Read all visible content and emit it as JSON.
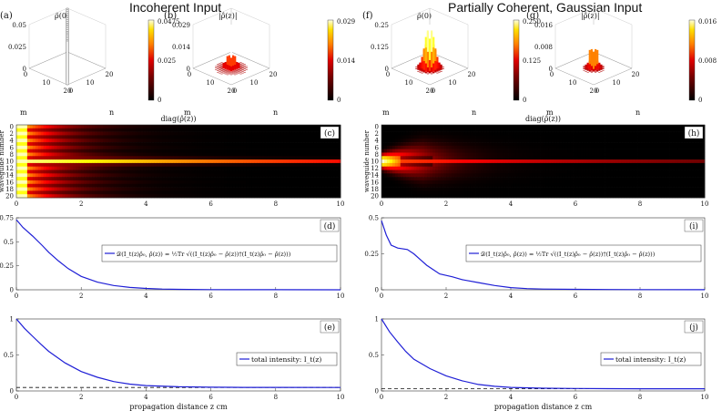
{
  "titles": {
    "left": "Incoherent Input",
    "right": "Partially Coherent, Gaussian Input"
  },
  "chart_data": [
    {
      "type": "bar3d",
      "id": "a",
      "panel_label": "(a)",
      "title": "ρ̂(0)",
      "xlabel": "n",
      "ylabel": "m",
      "zticks": [
        "0.05",
        "0.025",
        "0"
      ],
      "mticks": [
        "0",
        "10",
        "20"
      ],
      "nticks": [
        "0",
        "10",
        "20"
      ],
      "colorbar": {
        "min": 0,
        "max": 0.0475,
        "ticks": [
          "0.0475",
          "0.025",
          "0"
        ]
      },
      "description_values": {
        "diagonal_value": 0.0476,
        "offdiagonal_value": 0
      }
    },
    {
      "type": "bar3d",
      "id": "b",
      "panel_label": "(b)",
      "title": "|ρ̂(z)|",
      "xlabel": "n",
      "ylabel": "m",
      "zticks": [
        "0.029",
        "0.014",
        "0"
      ],
      "mticks": [
        "0",
        "10",
        "20"
      ],
      "nticks": [
        "0",
        "10",
        "20"
      ],
      "colorbar": {
        "min": 0,
        "max": 0.029,
        "ticks": [
          "0.029",
          "0.014",
          "0"
        ]
      }
    },
    {
      "type": "bar3d",
      "id": "f",
      "panel_label": "(f)",
      "title": "ρ̂(0)",
      "xlabel": "n",
      "ylabel": "m",
      "zticks": [
        "0.25",
        "0.125",
        "0"
      ],
      "mticks": [
        "0",
        "10",
        "20"
      ],
      "nticks": [
        "0",
        "10",
        "20"
      ],
      "colorbar": {
        "min": 0,
        "max": 0.25,
        "ticks": [
          "0.250",
          "0.125",
          "0"
        ]
      }
    },
    {
      "type": "bar3d",
      "id": "g",
      "panel_label": "(g)",
      "title": "|ρ̂(z)|",
      "xlabel": "n",
      "ylabel": "m",
      "zticks": [
        "0.016",
        "0.008",
        "0"
      ],
      "mticks": [
        "0",
        "10",
        "20"
      ],
      "nticks": [
        "0",
        "10",
        "20"
      ],
      "colorbar": {
        "min": 0,
        "max": 0.016,
        "ticks": [
          "0.016",
          "0.008",
          "0"
        ]
      }
    },
    {
      "type": "heatmap",
      "id": "c",
      "panel_label": "(c)",
      "title": "diag(ρ̂(z))",
      "ylabel": "waveguide number",
      "yticks": [
        "0",
        "2",
        "4",
        "6",
        "8",
        "10",
        "12",
        "14",
        "16",
        "18",
        "20"
      ],
      "xticks": [
        "0",
        "2",
        "4",
        "6",
        "8",
        "10"
      ],
      "xlim": [
        0,
        10
      ],
      "ylim": [
        0,
        20
      ],
      "rows": 21,
      "profile": "incoherent",
      "decay_length": 1.2,
      "bright_row": 10
    },
    {
      "type": "heatmap",
      "id": "h",
      "panel_label": "(h)",
      "title": "diag(ρ̂(z))",
      "ylabel": "waveguide number",
      "yticks": [
        "0",
        "2",
        "4",
        "6",
        "8",
        "10",
        "12",
        "14",
        "16",
        "18",
        "20"
      ],
      "xticks": [
        "0",
        "2",
        "4",
        "6",
        "8",
        "10"
      ],
      "xlim": [
        0,
        10
      ],
      "ylim": [
        0,
        20
      ],
      "rows": 21,
      "profile": "gaussian",
      "decay_length": 1.0,
      "bright_row": 10
    },
    {
      "type": "line",
      "id": "d",
      "panel_label": "(d)",
      "xlim": [
        0,
        10
      ],
      "ylim": [
        0,
        0.75
      ],
      "xticks": [
        "0",
        "2",
        "4",
        "6",
        "8",
        "10"
      ],
      "yticks": [
        "0",
        "0.25",
        "0.5",
        "0.75"
      ],
      "legend": "𝒟(I_t(z)ρ̂₀, ρ̂(z)) = ½Tr √((I_t(z)ρ̂₀ − ρ̂(z))†(I_t(z)ρ̂₀ − ρ̂(z)))",
      "series": [
        {
          "x": [
            0,
            0.2,
            0.5,
            0.8,
            1,
            1.3,
            1.6,
            2,
            2.5,
            3,
            3.5,
            4,
            4.5,
            5,
            6,
            7,
            8,
            10
          ],
          "y": [
            0.73,
            0.65,
            0.56,
            0.46,
            0.39,
            0.3,
            0.22,
            0.14,
            0.08,
            0.045,
            0.025,
            0.014,
            0.008,
            0.005,
            0.002,
            0.001,
            0.0005,
            0.0002
          ]
        }
      ]
    },
    {
      "type": "line",
      "id": "i",
      "panel_label": "(i)",
      "xlim": [
        0,
        10
      ],
      "ylim": [
        0,
        0.5
      ],
      "xticks": [
        "0",
        "2",
        "4",
        "6",
        "8",
        "10"
      ],
      "yticks": [
        "0",
        "0.25",
        "0.5"
      ],
      "legend": "𝒟(I_t(z)ρ̂₀, ρ̂(z)) = ½Tr √((I_t(z)ρ̂₀ − ρ̂(z))†(I_t(z)ρ̂₀ − ρ̂(z)))",
      "series": [
        {
          "x": [
            0,
            0.15,
            0.3,
            0.5,
            0.8,
            1,
            1.2,
            1.4,
            1.6,
            1.8,
            2,
            2.2,
            2.5,
            3,
            3.5,
            4,
            4.5,
            5,
            6,
            7,
            8,
            10
          ],
          "y": [
            0.48,
            0.38,
            0.31,
            0.29,
            0.28,
            0.25,
            0.21,
            0.17,
            0.14,
            0.11,
            0.1,
            0.09,
            0.07,
            0.05,
            0.03,
            0.015,
            0.008,
            0.005,
            0.003,
            0.002,
            0.001,
            0.0005
          ]
        }
      ]
    },
    {
      "type": "line",
      "id": "e",
      "panel_label": "(e)",
      "xlim": [
        0,
        10
      ],
      "ylim": [
        0,
        1
      ],
      "xticks": [
        "0",
        "2",
        "4",
        "6",
        "8",
        "10"
      ],
      "yticks": [
        "0",
        "0.5",
        "1"
      ],
      "xlabel": "propagation distance z cm",
      "legend": "total intensity: I_t(z)",
      "asymptote": 0.048,
      "series": [
        {
          "x": [
            0,
            0.25,
            0.5,
            0.75,
            1,
            1.5,
            2,
            2.5,
            3,
            3.5,
            4,
            5,
            6,
            7,
            8,
            10
          ],
          "y": [
            1,
            0.87,
            0.76,
            0.65,
            0.55,
            0.39,
            0.27,
            0.19,
            0.13,
            0.095,
            0.075,
            0.058,
            0.052,
            0.05,
            0.049,
            0.048
          ]
        }
      ]
    },
    {
      "type": "line",
      "id": "j",
      "panel_label": "(j)",
      "xlim": [
        0,
        10
      ],
      "ylim": [
        0,
        1
      ],
      "xticks": [
        "0",
        "2",
        "4",
        "6",
        "8",
        "10"
      ],
      "yticks": [
        "0",
        "0.5",
        "1"
      ],
      "xlabel": "propagation distance z cm",
      "legend": "total intensity: I_t(z)",
      "asymptote": 0.03,
      "series": [
        {
          "x": [
            0,
            0.25,
            0.5,
            0.75,
            1,
            1.5,
            2,
            2.5,
            3,
            3.5,
            4,
            5,
            6,
            7,
            8,
            10
          ],
          "y": [
            1,
            0.82,
            0.68,
            0.55,
            0.44,
            0.31,
            0.21,
            0.14,
            0.09,
            0.065,
            0.05,
            0.038,
            0.034,
            0.032,
            0.031,
            0.03
          ]
        }
      ]
    }
  ]
}
